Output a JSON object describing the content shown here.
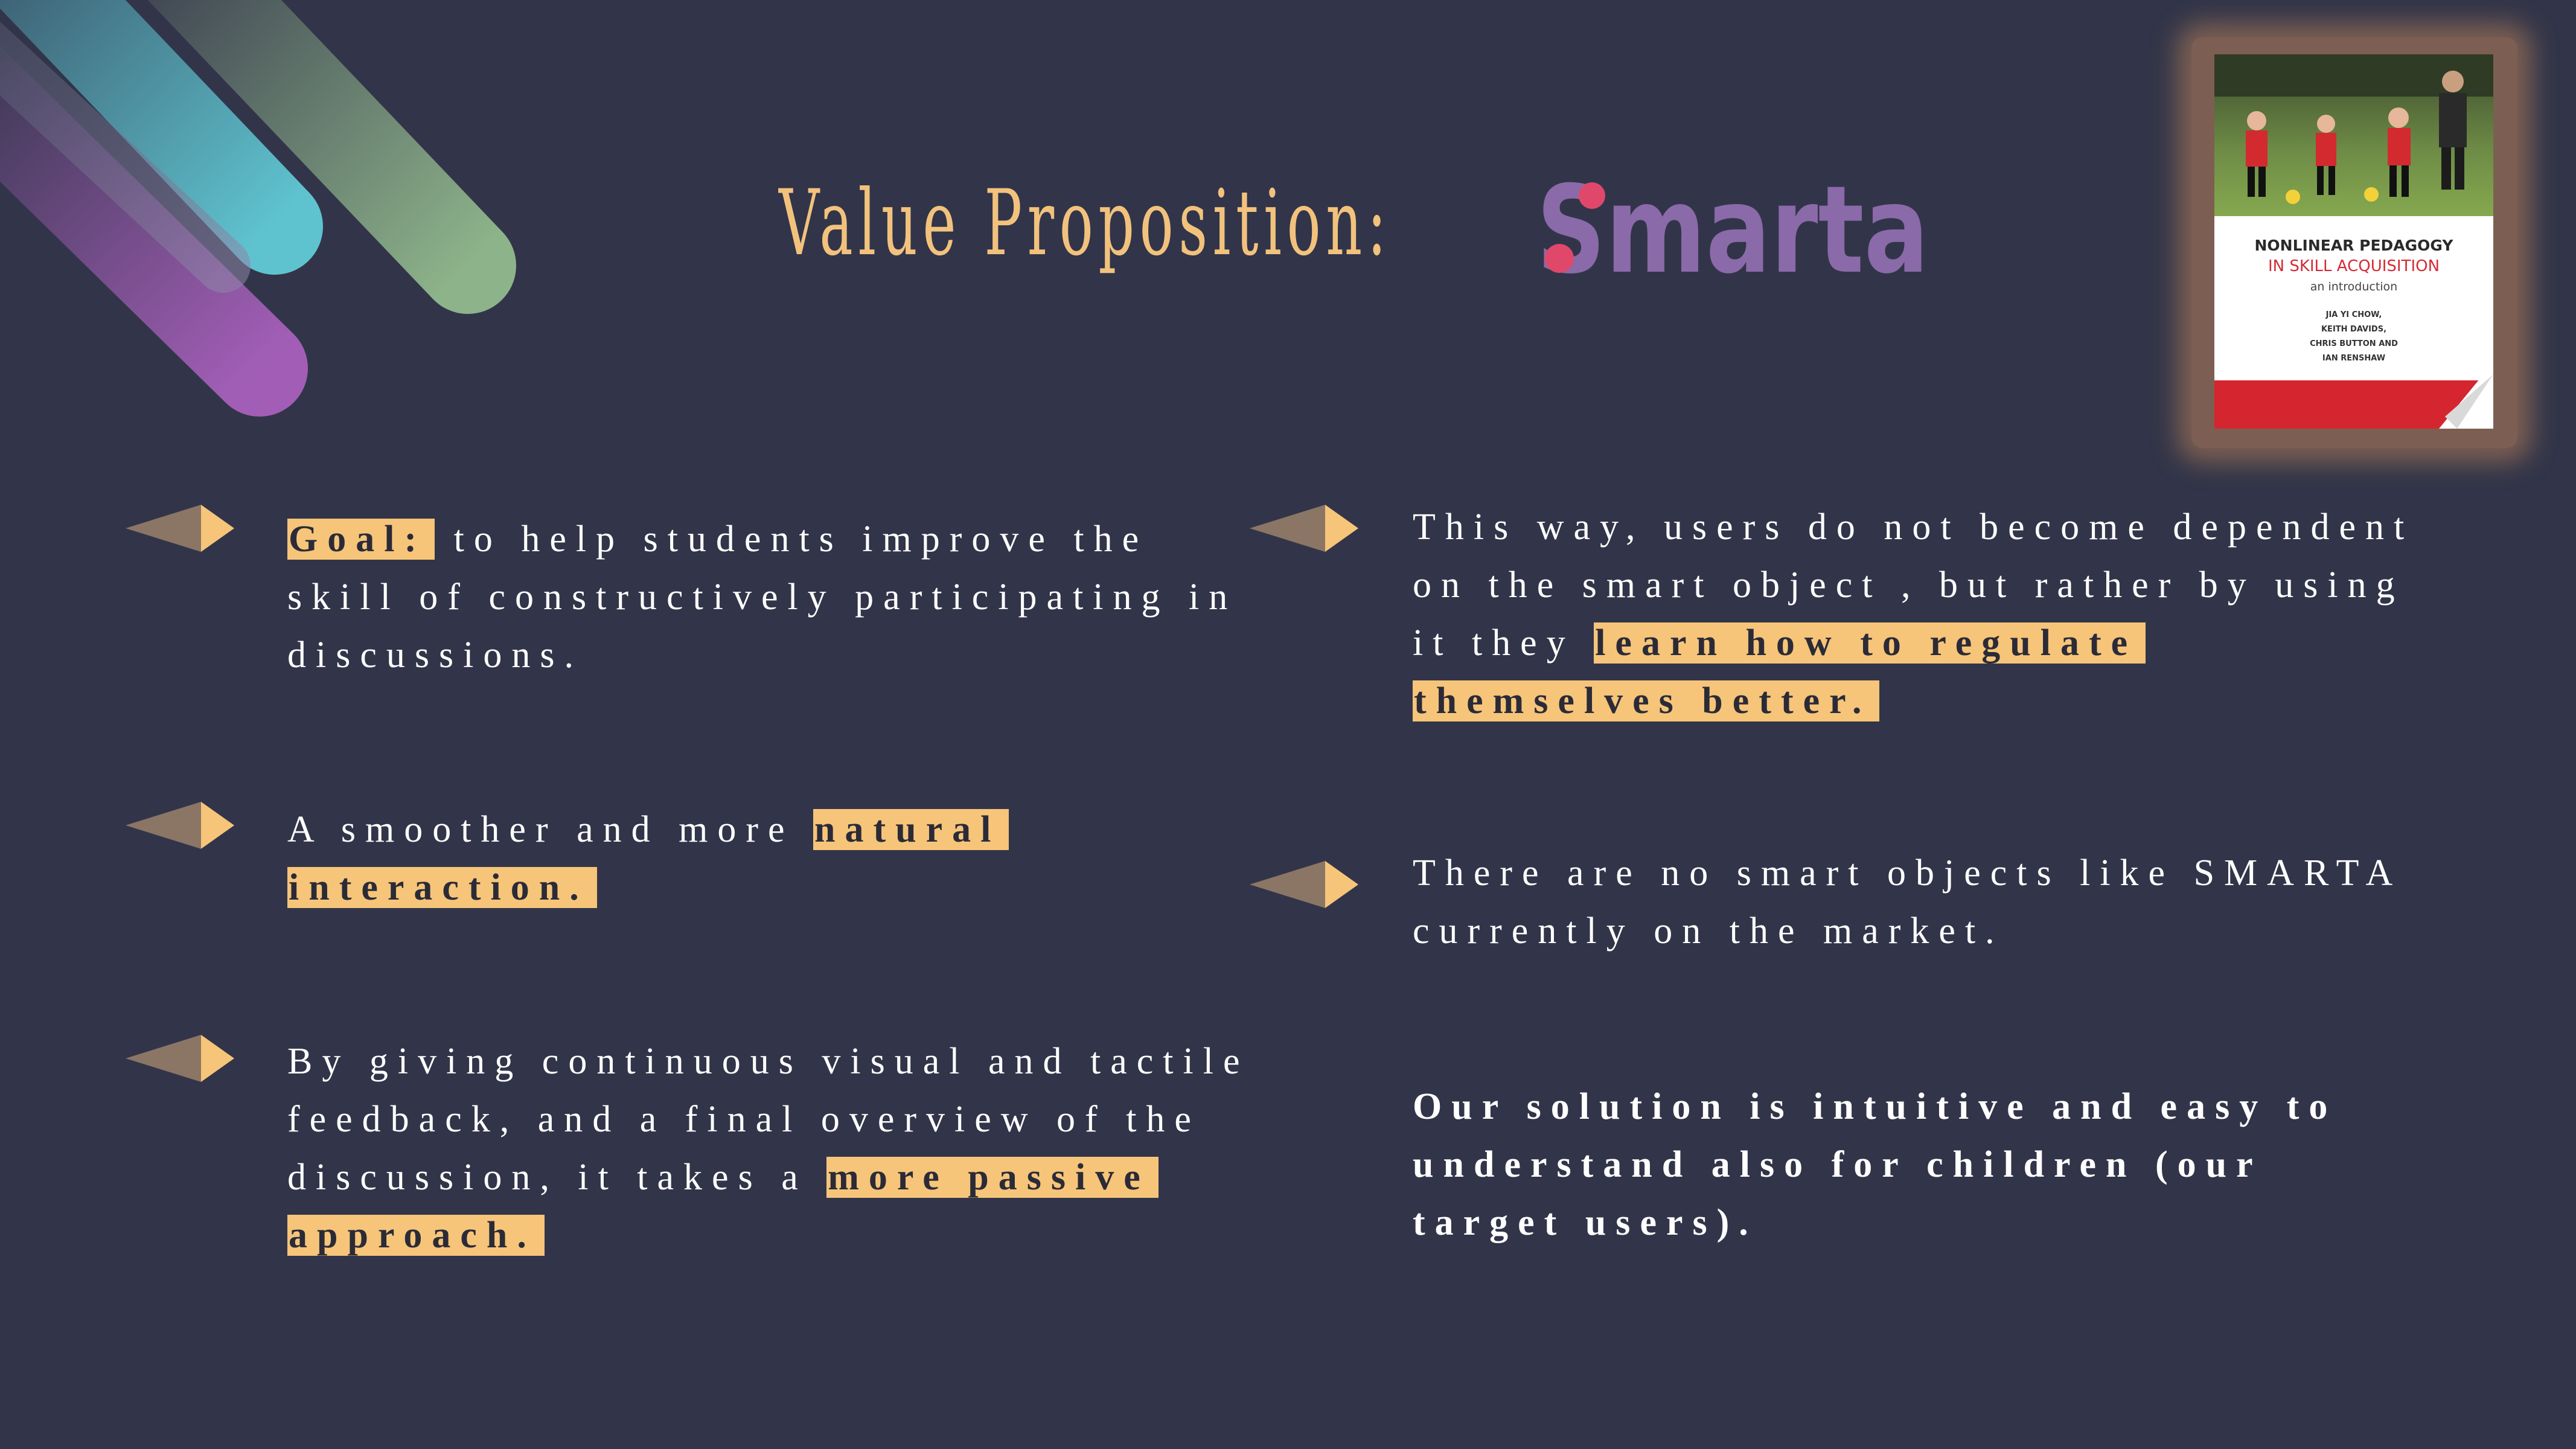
{
  "slide": {
    "title": "Value Proposition:",
    "logo_text": "Smarta",
    "colors": {
      "background": "#323549",
      "title": "#F2C27D",
      "highlight": "#F6C579",
      "arrow_dark": "#8B7565",
      "arrow_light": "#F6C579"
    }
  },
  "book_cover": {
    "title_line1": "NONLINEAR PEDAGOGY",
    "title_line2": "IN SKILL ACQUISITION",
    "subtitle": "an introduction",
    "authors": [
      "JIA YI CHOW,",
      "KEITH DAVIDS,",
      "CHRIS BUTTON AND",
      "IAN RENSHAW"
    ]
  },
  "left_points": [
    {
      "icon": "arrow-pointer-icon",
      "lines": [
        [
          {
            "t": "Goal:",
            "hl": true
          },
          {
            "t": " to help students improve the"
          }
        ],
        [
          {
            "t": "skill of constructively participating in"
          }
        ],
        [
          {
            "t": "discussions."
          }
        ]
      ]
    },
    {
      "icon": "arrow-pointer-icon",
      "lines": [
        [
          {
            "t": "A smoother and more "
          },
          {
            "t": "natural",
            "hl": true
          }
        ],
        [
          {
            "t": "interaction.",
            "hl": true
          }
        ]
      ]
    },
    {
      "icon": "arrow-pointer-icon",
      "lines": [
        [
          {
            "t": "By giving continuous visual and tactile"
          }
        ],
        [
          {
            "t": "feedback, and a final overview of the"
          }
        ],
        [
          {
            "t": "discussion, it takes a "
          },
          {
            "t": "more passive",
            "hl": true
          }
        ],
        [
          {
            "t": "approach.",
            "hl": true
          }
        ]
      ]
    }
  ],
  "right_points": [
    {
      "icon": "arrow-pointer-icon",
      "lines": [
        [
          {
            "t": "This way, users do not become dependent"
          }
        ],
        [
          {
            "t": "on the smart object , but rather by using"
          }
        ],
        [
          {
            "t": "it they "
          },
          {
            "t": "learn how to regulate",
            "hl": true
          }
        ],
        [
          {
            "t": "themselves better.",
            "hl": true
          }
        ]
      ]
    },
    {
      "icon": "arrow-pointer-icon",
      "lines": [
        [
          {
            "t": "There are no smart objects like SMARTA"
          }
        ],
        [
          {
            "t": "currently on the market."
          }
        ]
      ]
    },
    {
      "icon": null,
      "bold": true,
      "lines": [
        [
          {
            "t": "Our solution is intuitive and easy to"
          }
        ],
        [
          {
            "t": "understand also for children (our"
          }
        ],
        [
          {
            "t": "target users)."
          }
        ]
      ]
    }
  ]
}
